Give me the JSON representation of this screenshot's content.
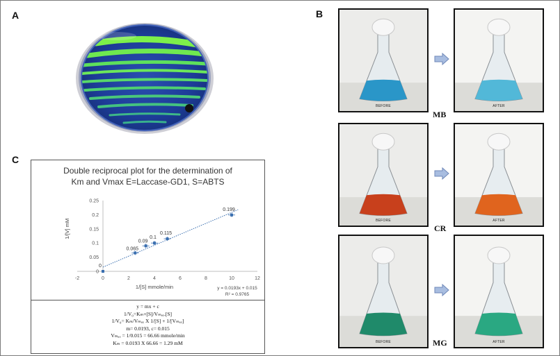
{
  "panels": {
    "a_label": "A",
    "b_label": "B",
    "c_label": "C"
  },
  "panel_b": {
    "rows": [
      {
        "dye": "MB",
        "color": "#2a96c8",
        "after_color": "#52b8d8",
        "before_caption": "BEFORE",
        "after_caption": "AFTER"
      },
      {
        "dye": "CR",
        "color": "#c8401c",
        "after_color": "#e0641e",
        "before_caption": "BEFORE",
        "after_caption": "AFTER"
      },
      {
        "dye": "MG",
        "color": "#1f8a6a",
        "after_color": "#2aa882",
        "before_caption": "BEFORE",
        "after_caption": "AFTER"
      }
    ]
  },
  "chart_data": {
    "type": "scatter",
    "title_line1": "Double reciprocal plot for the determination of",
    "title_line2": "Km and Vmax E=Laccase-GD1, S=ABTS",
    "xlabel": "1/[S] mmole/min",
    "ylabel": "1/[V] mM",
    "xlim": [
      -2,
      12
    ],
    "ylim": [
      0,
      0.25
    ],
    "x_ticks": [
      "-2",
      "0",
      "2",
      "4",
      "6",
      "8",
      "10",
      "12"
    ],
    "y_ticks": [
      "0",
      "0.05",
      "0.1",
      "0.15",
      "0.2",
      "0.25"
    ],
    "series": [
      {
        "x": [
          0,
          2.5,
          3.33,
          4,
          5,
          10
        ],
        "y": [
          0,
          0.065,
          0.09,
          0.1,
          0.115,
          0.199
        ],
        "point_labels": [
          "0",
          "0.065",
          "0.09",
          "0.1",
          "0.115",
          "0.199"
        ]
      }
    ],
    "trendline": {
      "slope": 0.0193,
      "intercept": 0.015,
      "x_range": [
        0,
        10.5
      ]
    },
    "trend_equation": "y = 0.0193x + 0.015",
    "r_squared": "R² = 0.9765",
    "marker_color": "#3a6fb0",
    "grid": false
  },
  "equations": {
    "line1": "y = mx + c",
    "line2": "1/V₀=Kₘ+[S]/Vₘₐₓ.[S]",
    "line3": "1/V₀= Kₘ/Vₘₐₓ  X 1/[S] + 1/[Vₘₐₓ]",
    "line4": "m= 0.0193,  c= 0.015",
    "line5": "Vₘₐₓ  = 1/0.015  = 66.66  mmole/min",
    "line6": "Kₘ = 0.0193  X 66.66  = 1.29 mM"
  }
}
